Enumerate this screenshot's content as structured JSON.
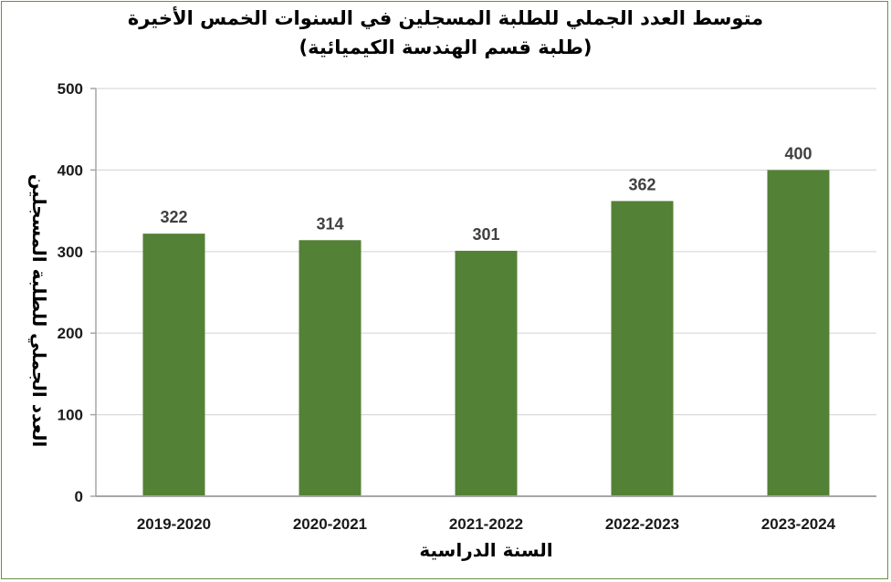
{
  "chart_data": {
    "type": "bar",
    "title": "متوسط العدد الجملي للطلبة المسجلين في السنوات الخمس الأخيرة",
    "subtitle": "(طلبة قسم الهندسة الكيميائية)",
    "xlabel": "السنة الدراسية",
    "ylabel": "العدد الجملي للطلبة المسجلين",
    "categories": [
      "2019-2020",
      "2020-2021",
      "2021-2022",
      "2022-2023",
      "2023-2024"
    ],
    "values": [
      322,
      314,
      301,
      362,
      400
    ],
    "ylim": [
      0,
      500
    ],
    "yticks": [
      0,
      100,
      200,
      300,
      400,
      500
    ],
    "grid": true,
    "legend": "none",
    "bar_color": "#538135",
    "grid_color": "#d9d9d9"
  }
}
